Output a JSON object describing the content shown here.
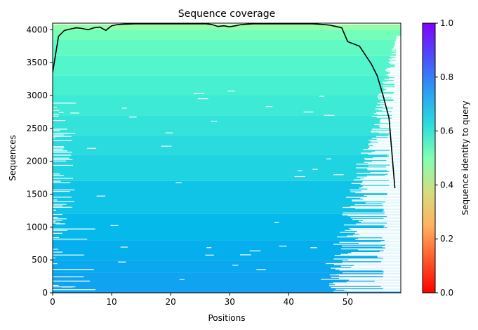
{
  "chart_data": {
    "type": "heatmap",
    "title": "Sequence coverage",
    "xlabel": "Positions",
    "ylabel": "Sequences",
    "xlim": [
      0,
      59
    ],
    "ylim": [
      0,
      4100
    ],
    "xticks": [
      0,
      10,
      20,
      30,
      40,
      50
    ],
    "yticks": [
      0,
      500,
      1000,
      1500,
      2000,
      2500,
      3000,
      3500,
      4000
    ],
    "colorbar": {
      "label": "Sequence identity to query",
      "colormap": "rainbow",
      "ticks": [
        0.0,
        0.2,
        0.4,
        0.6,
        0.8,
        1.0
      ],
      "tick_labels": [
        "0.0",
        "0.2",
        "0.4",
        "0.6",
        "0.8",
        "1.0"
      ],
      "range": [
        0,
        1
      ]
    },
    "identity_bands": [
      {
        "from": 0,
        "to": 300,
        "identity": 0.22
      },
      {
        "from": 300,
        "to": 500,
        "identity": 0.23
      },
      {
        "from": 500,
        "to": 800,
        "identity": 0.24
      },
      {
        "from": 800,
        "to": 1200,
        "identity": 0.26
      },
      {
        "from": 1200,
        "to": 1700,
        "identity": 0.28
      },
      {
        "from": 1700,
        "to": 2100,
        "identity": 0.31
      },
      {
        "from": 2100,
        "to": 2400,
        "identity": 0.33
      },
      {
        "from": 2400,
        "to": 2700,
        "identity": 0.35
      },
      {
        "from": 2700,
        "to": 3000,
        "identity": 0.37
      },
      {
        "from": 3000,
        "to": 3300,
        "identity": 0.39
      },
      {
        "from": 3300,
        "to": 3600,
        "identity": 0.41
      },
      {
        "from": 3600,
        "to": 3850,
        "identity": 0.44
      },
      {
        "from": 3850,
        "to": 4000,
        "identity": 0.48
      },
      {
        "from": 4000,
        "to": 4080,
        "identity": 0.54
      }
    ],
    "coverage_line": {
      "color": "#000000",
      "x": [
        0,
        1,
        2,
        3,
        4,
        5,
        6,
        7,
        8,
        9,
        10,
        11,
        12,
        14,
        16,
        18,
        20,
        22,
        24,
        26,
        27,
        28,
        29,
        30,
        31,
        32,
        34,
        36,
        38,
        40,
        42,
        44,
        46,
        47,
        48,
        49,
        50,
        52,
        54,
        55,
        56,
        57,
        58
      ],
      "y": [
        3350,
        3900,
        3990,
        4010,
        4030,
        4020,
        4000,
        4030,
        4040,
        3990,
        4060,
        4080,
        4085,
        4090,
        4090,
        4090,
        4090,
        4090,
        4090,
        4090,
        4080,
        4050,
        4060,
        4045,
        4060,
        4080,
        4090,
        4090,
        4090,
        4090,
        4090,
        4090,
        4080,
        4070,
        4050,
        4030,
        3820,
        3750,
        3480,
        3300,
        3000,
        2660,
        1590
      ]
    }
  }
}
